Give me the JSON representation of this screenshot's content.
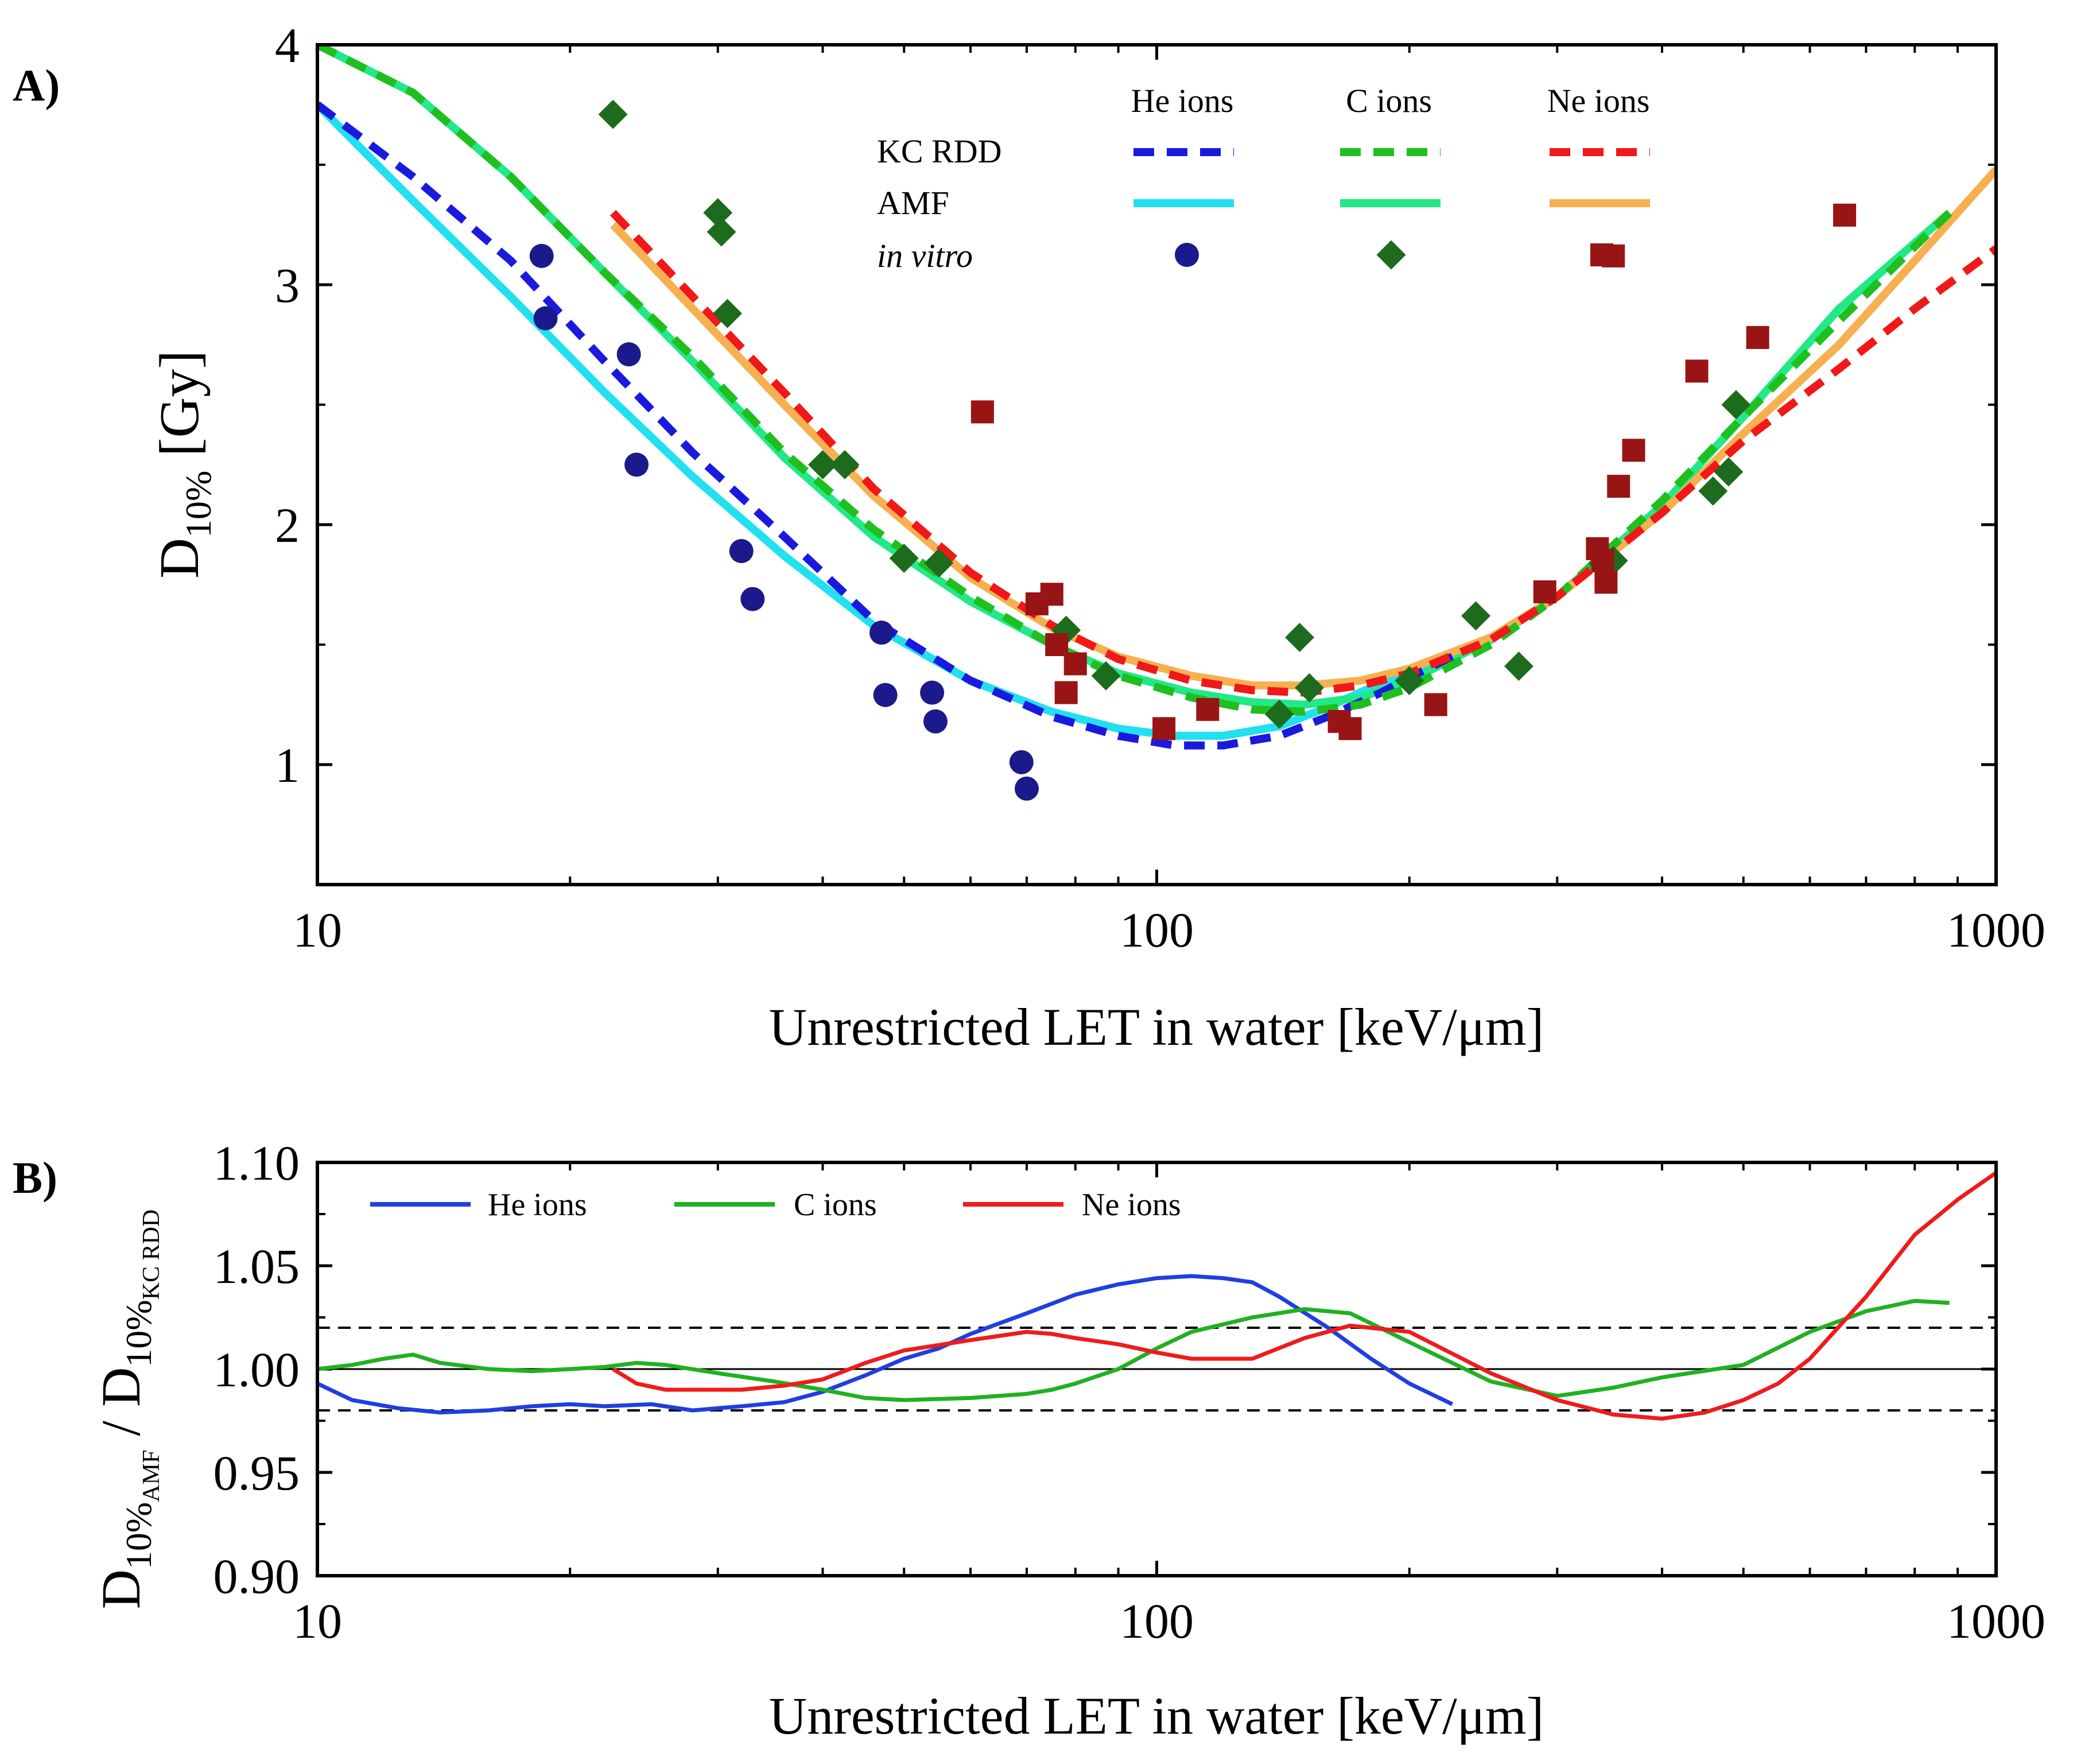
{
  "colors": {
    "he_kc": "#1a1adf",
    "he_amf": "#22e0f0",
    "he_pts": "#1a1a8c",
    "c_kc": "#1fbf1f",
    "c_amf": "#22e888",
    "c_pts": "#1d6b1d",
    "ne_kc": "#f01818",
    "ne_amf": "#f7b050",
    "ne_pts": "#991414",
    "b_he": "#1f3fe0",
    "b_c": "#22b022",
    "b_ne": "#ee1c1c"
  },
  "chart_data": [
    {
      "panel": "A)",
      "type": "line",
      "xscale": "log",
      "xlim": [
        10,
        1000
      ],
      "ylim": [
        0.5,
        4
      ],
      "xticks": [
        10,
        100,
        1000
      ],
      "xticklabels": [
        "10",
        "100",
        "1000"
      ],
      "yticks": [
        1,
        2,
        3,
        4
      ],
      "yticklabels": [
        "1",
        "2",
        "3",
        "4"
      ],
      "xlabel": "Unrestricted LET in water [keV/μm]",
      "ylabel_main": "D",
      "ylabel_sub": "10%",
      "ylabel_unit": " [Gy]",
      "legend": {
        "columns": [
          "He ions",
          "C ions",
          "Ne ions"
        ],
        "rows": [
          "KC RDD",
          "AMF",
          "in vitro"
        ]
      },
      "series": [
        {
          "name": "He ions KC RDD",
          "style": "dashed",
          "color_key": "he_kc",
          "x": [
            10,
            13,
            17,
            22,
            28,
            36,
            46,
            60,
            75,
            90,
            105,
            120,
            140,
            160,
            185,
            210,
            225
          ],
          "y": [
            3.75,
            3.45,
            3.1,
            2.68,
            2.3,
            1.95,
            1.6,
            1.35,
            1.2,
            1.12,
            1.08,
            1.08,
            1.12,
            1.2,
            1.3,
            1.4,
            1.45
          ]
        },
        {
          "name": "He ions AMF",
          "style": "solid",
          "color_key": "he_amf",
          "x": [
            10,
            13,
            17,
            22,
            28,
            36,
            46,
            60,
            75,
            90,
            105,
            120,
            140,
            160,
            185,
            210,
            225
          ],
          "y": [
            3.75,
            3.35,
            2.95,
            2.55,
            2.2,
            1.87,
            1.58,
            1.35,
            1.22,
            1.15,
            1.12,
            1.12,
            1.16,
            1.24,
            1.34,
            1.42,
            1.46
          ]
        },
        {
          "name": "C ions KC RDD",
          "style": "dashed",
          "color_key": "c_kc",
          "x": [
            10,
            13,
            17,
            22,
            28,
            36,
            46,
            60,
            75,
            90,
            110,
            130,
            150,
            175,
            200,
            250,
            300,
            400,
            500,
            650,
            880
          ],
          "y": [
            4.0,
            3.8,
            3.45,
            3.05,
            2.7,
            2.3,
            1.98,
            1.7,
            1.5,
            1.37,
            1.28,
            1.23,
            1.22,
            1.25,
            1.32,
            1.5,
            1.7,
            2.1,
            2.45,
            2.85,
            3.3
          ]
        },
        {
          "name": "C ions AMF",
          "style": "solid",
          "color_key": "c_amf",
          "x": [
            10,
            13,
            17,
            22,
            28,
            36,
            46,
            60,
            75,
            90,
            110,
            130,
            150,
            175,
            200,
            250,
            300,
            400,
            500,
            650,
            880
          ],
          "y": [
            4.0,
            3.8,
            3.45,
            3.05,
            2.68,
            2.28,
            1.95,
            1.68,
            1.5,
            1.38,
            1.3,
            1.26,
            1.25,
            1.28,
            1.35,
            1.52,
            1.7,
            2.08,
            2.45,
            2.9,
            3.3
          ]
        },
        {
          "name": "Ne ions KC RDD",
          "style": "dashed",
          "color_key": "ne_kc",
          "x": [
            22.5,
            28,
            36,
            46,
            60,
            75,
            90,
            110,
            130,
            150,
            175,
            200,
            250,
            300,
            400,
            500,
            650,
            800,
            1000
          ],
          "y": [
            3.3,
            2.95,
            2.55,
            2.15,
            1.8,
            1.58,
            1.44,
            1.35,
            1.31,
            1.3,
            1.33,
            1.38,
            1.52,
            1.7,
            2.05,
            2.35,
            2.65,
            2.9,
            3.15
          ]
        },
        {
          "name": "Ne ions AMF",
          "style": "solid",
          "color_key": "ne_amf",
          "x": [
            22.5,
            28,
            36,
            46,
            60,
            75,
            90,
            110,
            130,
            150,
            175,
            200,
            250,
            300,
            400,
            500,
            650,
            800,
            1000
          ],
          "y": [
            3.25,
            2.9,
            2.5,
            2.12,
            1.78,
            1.57,
            1.45,
            1.37,
            1.33,
            1.33,
            1.35,
            1.4,
            1.53,
            1.7,
            2.05,
            2.38,
            2.75,
            3.1,
            3.48
          ]
        }
      ],
      "points": [
        {
          "name": "He ions in vitro",
          "marker": "circle",
          "color_key": "he_pts",
          "x": [
            18.5,
            18.7,
            23.5,
            24,
            32,
            33,
            47,
            47.5,
            54,
            54.5,
            69,
            70
          ],
          "y": [
            3.12,
            2.86,
            2.71,
            2.25,
            1.89,
            1.69,
            1.55,
            1.29,
            1.3,
            1.18,
            1.01,
            0.9
          ]
        },
        {
          "name": "C ions in vitro",
          "marker": "diamond",
          "color_key": "c_pts",
          "x": [
            22.5,
            30,
            30.3,
            30.8,
            40,
            42.5,
            50,
            55,
            78,
            87,
            140,
            148,
            152,
            200,
            240,
            270,
            340,
            350,
            460,
            480,
            490
          ],
          "y": [
            3.71,
            3.3,
            3.22,
            2.88,
            2.25,
            2.25,
            1.86,
            1.84,
            1.56,
            1.37,
            1.21,
            1.53,
            1.32,
            1.35,
            1.62,
            1.41,
            1.84,
            1.85,
            2.14,
            2.22,
            2.5
          ]
        },
        {
          "name": "Ne ions in vitro",
          "marker": "square",
          "color_key": "ne_pts",
          "x": [
            62,
            72,
            75,
            76,
            78,
            80,
            102,
            115,
            165,
            170,
            215,
            290,
            335,
            340,
            343,
            350,
            355,
            370,
            440,
            520,
            660
          ],
          "y": [
            2.47,
            1.67,
            1.71,
            1.5,
            1.3,
            1.42,
            1.15,
            1.23,
            1.18,
            1.15,
            1.25,
            1.72,
            1.9,
            1.85,
            1.76,
            3.12,
            2.16,
            2.31,
            2.64,
            2.78,
            3.29
          ]
        }
      ]
    },
    {
      "panel": "B)",
      "type": "line",
      "xscale": "log",
      "xlim": [
        10,
        1000
      ],
      "ylim": [
        0.9,
        1.1
      ],
      "xticks": [
        10,
        100,
        1000
      ],
      "xticklabels": [
        "10",
        "100",
        "1000"
      ],
      "yticks": [
        0.9,
        0.95,
        1.0,
        1.05,
        1.1
      ],
      "yticklabels": [
        "0.90",
        "0.95",
        "1.00",
        "1.05",
        "1.10"
      ],
      "reference_lines": {
        "solid": [
          1.0
        ],
        "dashed": [
          0.98,
          1.02
        ]
      },
      "xlabel": "Unrestricted LET in water [keV/μm]",
      "ylabel_num_main": "D",
      "ylabel_num_sub1": "10%",
      "ylabel_num_sub2": "AMF",
      "ylabel_slash": " / ",
      "ylabel_den_main": "D",
      "ylabel_den_sub1": "10%",
      "ylabel_den_sub2": "KC RDD",
      "legend": [
        "He ions",
        "C ions",
        "Ne ions"
      ],
      "series": [
        {
          "name": "He ions",
          "color_key": "b_he",
          "x": [
            10,
            11,
            12.5,
            14,
            16,
            18,
            20,
            22,
            25,
            28,
            32,
            36,
            40,
            45,
            50,
            55,
            60,
            70,
            80,
            90,
            100,
            110,
            120,
            130,
            140,
            160,
            180,
            200,
            225
          ],
          "y": [
            0.993,
            0.985,
            0.981,
            0.979,
            0.98,
            0.982,
            0.983,
            0.982,
            0.983,
            0.98,
            0.982,
            0.984,
            0.989,
            0.997,
            1.005,
            1.01,
            1.017,
            1.027,
            1.036,
            1.041,
            1.044,
            1.045,
            1.044,
            1.042,
            1.035,
            1.02,
            1.005,
            0.993,
            0.983
          ]
        },
        {
          "name": "C ions",
          "color_key": "b_c",
          "x": [
            10,
            11,
            12,
            13,
            14,
            16,
            18,
            20,
            22,
            24,
            26,
            30,
            35,
            40,
            45,
            50,
            60,
            70,
            75,
            80,
            90,
            100,
            110,
            130,
            150,
            170,
            200,
            250,
            300,
            350,
            400,
            500,
            600,
            700,
            800,
            880
          ],
          "y": [
            1.0,
            1.002,
            1.005,
            1.007,
            1.003,
            1.0,
            0.999,
            1.0,
            1.001,
            1.003,
            1.002,
            0.998,
            0.994,
            0.99,
            0.986,
            0.985,
            0.986,
            0.988,
            0.99,
            0.993,
            1.0,
            1.01,
            1.018,
            1.025,
            1.029,
            1.027,
            1.013,
            0.994,
            0.987,
            0.991,
            0.996,
            1.002,
            1.018,
            1.028,
            1.033,
            1.032
          ]
        },
        {
          "name": "Ne ions",
          "color_key": "b_ne",
          "x": [
            22.5,
            24,
            26,
            28,
            32,
            36,
            40,
            45,
            50,
            60,
            70,
            75,
            80,
            90,
            100,
            110,
            130,
            150,
            170,
            200,
            250,
            300,
            350,
            400,
            450,
            500,
            550,
            600,
            700,
            800,
            900,
            1000
          ],
          "y": [
            1.0,
            0.993,
            0.99,
            0.99,
            0.99,
            0.992,
            0.995,
            1.003,
            1.009,
            1.014,
            1.018,
            1.017,
            1.015,
            1.012,
            1.008,
            1.005,
            1.005,
            1.015,
            1.021,
            1.018,
            0.998,
            0.985,
            0.978,
            0.976,
            0.979,
            0.985,
            0.993,
            1.005,
            1.035,
            1.065,
            1.082,
            1.095
          ]
        }
      ]
    }
  ]
}
